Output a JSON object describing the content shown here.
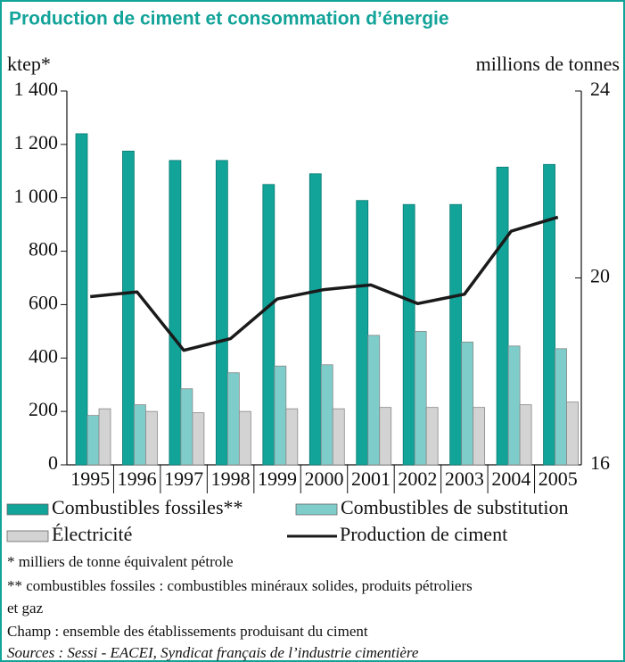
{
  "chart_data": {
    "type": "bar",
    "title": "Production de ciment et consommation d’énergie",
    "ylabel": "ktep*",
    "y2label": "millions de tonnes",
    "categories": [
      "1995",
      "1996",
      "1997",
      "1998",
      "1999",
      "2000",
      "2001",
      "2002",
      "2003",
      "2004",
      "2005"
    ],
    "series": [
      {
        "name": "Combustibles fossiles**",
        "color": "#12a399",
        "type": "bar",
        "values": [
          1240,
          1175,
          1140,
          1140,
          1050,
          1090,
          990,
          975,
          975,
          1115,
          1125
        ]
      },
      {
        "name": "Combustibles de substitution",
        "color": "#7fcdcb",
        "type": "bar",
        "values": [
          185,
          225,
          285,
          345,
          370,
          375,
          485,
          500,
          460,
          445,
          435
        ]
      },
      {
        "name": "Électricité",
        "color": "#d3d3d3",
        "type": "bar",
        "values": [
          210,
          200,
          195,
          200,
          210,
          210,
          215,
          215,
          215,
          225,
          235
        ]
      },
      {
        "name": "Production de ciment",
        "color": "#1a1a1a",
        "type": "line",
        "axis": "y2",
        "values": [
          19.6,
          19.7,
          18.45,
          18.7,
          19.55,
          19.75,
          19.85,
          19.45,
          19.65,
          21.0,
          21.3
        ]
      }
    ],
    "ylim": [
      0,
      1400
    ],
    "yticks": [
      0,
      200,
      400,
      600,
      800,
      {
        "value": 1000,
        "label": "1 000"
      },
      {
        "value": 1200,
        "label": "1 200"
      },
      {
        "value": 1400,
        "label": "1 400"
      }
    ],
    "y2lim": [
      16,
      24
    ],
    "y2ticks": [
      16,
      20,
      24
    ],
    "notes": [
      "* milliers de tonne équivalent pétrole",
      "** combustibles fossiles : combustibles minéraux solides, produits pétroliers",
      "et gaz",
      "Champ : ensemble des établissements produisant du ciment"
    ],
    "source": "Sources : Sessi - EACEI, Syndicat français de l’industrie cimentière"
  }
}
